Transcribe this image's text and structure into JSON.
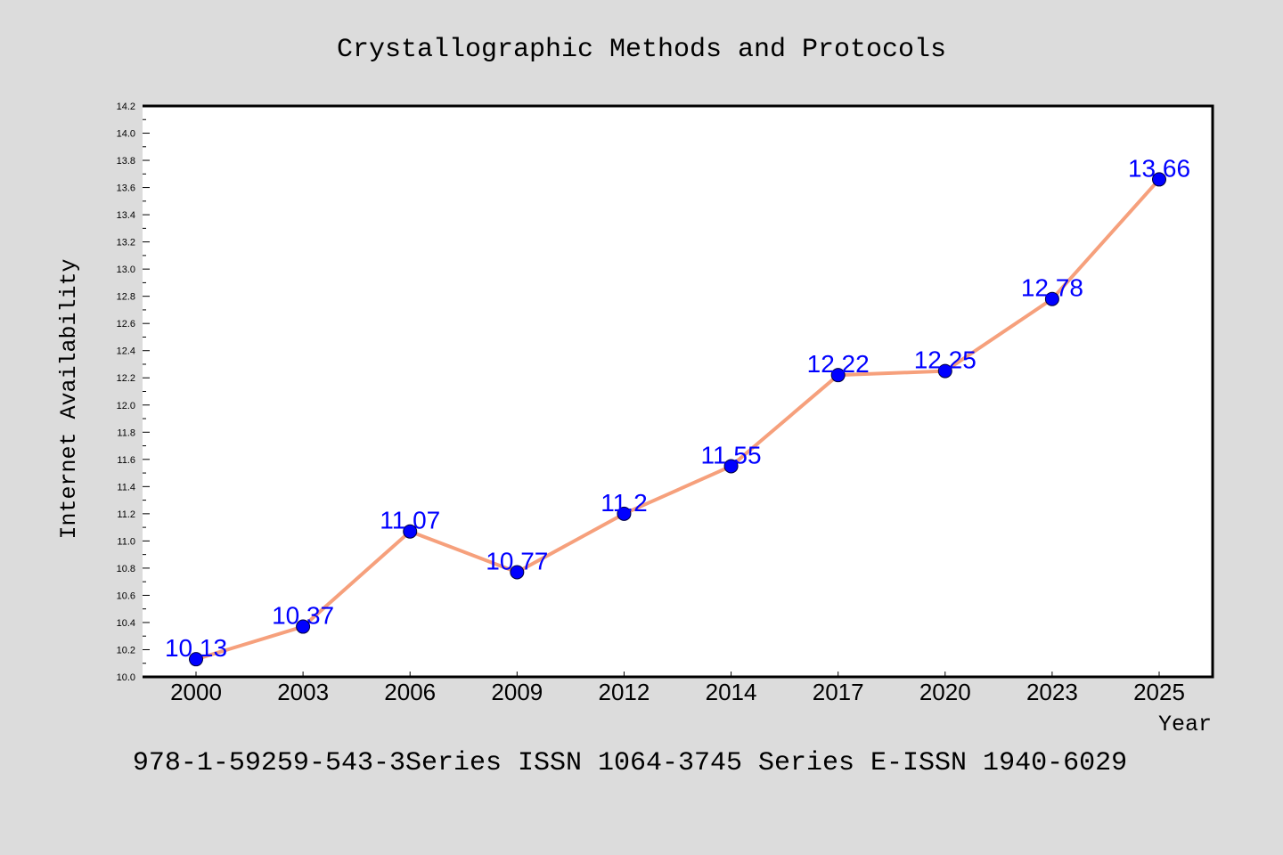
{
  "chart_data": {
    "type": "line",
    "title": "Crystallographic Methods and Protocols",
    "xlabel": "Year",
    "ylabel": "Internet Availability",
    "categories": [
      "2000",
      "2003",
      "2006",
      "2009",
      "2012",
      "2014",
      "2017",
      "2020",
      "2023",
      "2025"
    ],
    "series": [
      {
        "values": [
          10.13,
          10.37,
          11.07,
          10.77,
          11.2,
          11.55,
          12.22,
          12.25,
          12.78,
          13.66
        ]
      }
    ],
    "ylim": [
      10.0,
      14.2
    ],
    "yticks": [
      "10.0",
      "10.2",
      "10.4",
      "10.6",
      "10.8",
      "11.0",
      "11.2",
      "11.4",
      "11.6",
      "11.8",
      "12.0",
      "12.2",
      "12.4",
      "12.6",
      "12.8",
      "13.0",
      "13.2",
      "13.4",
      "13.6",
      "13.8",
      "14.0",
      "14.2"
    ],
    "y_minor_step": 0.1,
    "grid": false,
    "legend": "none",
    "data_labels": "on",
    "colors": {
      "background": "#dcdcdc",
      "plot_background": "#ffffff",
      "line": "#f6a07c",
      "marker": "#0000ff",
      "marker_edge": "#00003a",
      "data_label": "#0000ff"
    }
  },
  "caption": "978-1-59259-543-3Series ISSN 1064-3745 Series E-ISSN 1940-6029"
}
